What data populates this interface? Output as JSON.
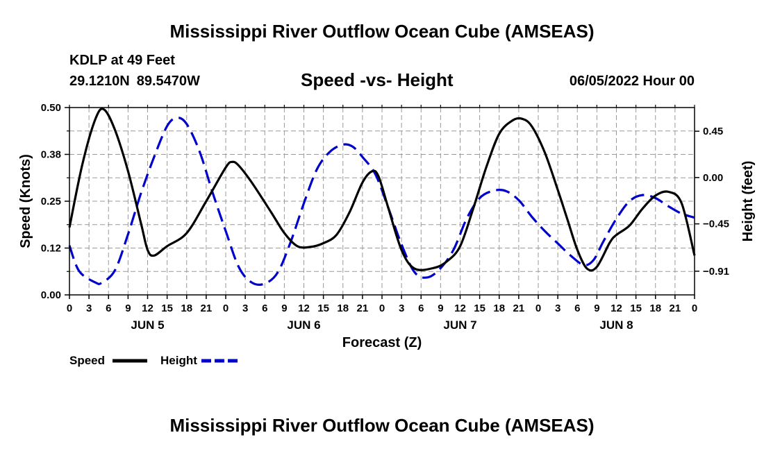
{
  "header": {
    "title": "Mississippi River Outflow Ocean Cube (AMSEAS)",
    "station": "KDLP at 49 Feet",
    "lat": "29.1210N",
    "lon": "89.5470W",
    "subtitle": "Speed -vs- Height",
    "datetime": "06/05/2022 Hour 00"
  },
  "footer_title": "Mississippi River Outflow Ocean Cube (AMSEAS)",
  "colors": {
    "speed": "#000000",
    "height": "#0000cc",
    "grid": "#999999"
  },
  "chart_data": {
    "type": "line",
    "title": "Speed -vs- Height",
    "xlabel": "Forecast (Z)",
    "ylabel": "Speed (Knots)",
    "y2label": "Height (feet)",
    "xlim": [
      0,
      96
    ],
    "ylim": [
      0,
      0.5
    ],
    "y2lim": [
      -1.14,
      0.68
    ],
    "x_tick_labels": [
      "0",
      "3",
      "6",
      "9",
      "12",
      "15",
      "18",
      "21",
      "0",
      "3",
      "6",
      "9",
      "12",
      "15",
      "18",
      "21",
      "0",
      "3",
      "6",
      "9",
      "12",
      "15",
      "18",
      "21",
      "0",
      "3",
      "6",
      "9",
      "12",
      "15",
      "18",
      "21",
      "0"
    ],
    "day_labels": [
      {
        "label": "JUN 5",
        "hour": 12
      },
      {
        "label": "JUN 6",
        "hour": 36
      },
      {
        "label": "JUN 7",
        "hour": 60
      },
      {
        "label": "JUN 8",
        "hour": 84
      }
    ],
    "y_ticks": [
      0,
      0.125,
      0.25,
      0.375,
      0.5
    ],
    "y_tick_labels": [
      "0.00",
      "0.12",
      "0.25",
      "0.38",
      "0.50"
    ],
    "y2_ticks": [
      0.45,
      0,
      -0.45,
      -0.91
    ],
    "y2_tick_labels": [
      "0.45",
      "0.00",
      "−0.45",
      "−0.91"
    ],
    "series": [
      {
        "name": "Speed",
        "axis": "left",
        "style": "solid",
        "points": [
          [
            0,
            0.18
          ],
          [
            2,
            0.35
          ],
          [
            4,
            0.47
          ],
          [
            5.3,
            0.495
          ],
          [
            7,
            0.44
          ],
          [
            9,
            0.33
          ],
          [
            11,
            0.19
          ],
          [
            12,
            0.12
          ],
          [
            13,
            0.105
          ],
          [
            15,
            0.13
          ],
          [
            18,
            0.165
          ],
          [
            21,
            0.25
          ],
          [
            24,
            0.34
          ],
          [
            25,
            0.355
          ],
          [
            26,
            0.345
          ],
          [
            28,
            0.3
          ],
          [
            31,
            0.22
          ],
          [
            33,
            0.165
          ],
          [
            35,
            0.13
          ],
          [
            37,
            0.128
          ],
          [
            39,
            0.138
          ],
          [
            41,
            0.16
          ],
          [
            43,
            0.22
          ],
          [
            45,
            0.3
          ],
          [
            46.5,
            0.33
          ],
          [
            47.5,
            0.315
          ],
          [
            49,
            0.23
          ],
          [
            51,
            0.12
          ],
          [
            53,
            0.07
          ],
          [
            56,
            0.072
          ],
          [
            58,
            0.09
          ],
          [
            60,
            0.13
          ],
          [
            62,
            0.23
          ],
          [
            64,
            0.34
          ],
          [
            66,
            0.43
          ],
          [
            68,
            0.465
          ],
          [
            69.5,
            0.47
          ],
          [
            71,
            0.45
          ],
          [
            73,
            0.38
          ],
          [
            75,
            0.28
          ],
          [
            76.5,
            0.2
          ],
          [
            78,
            0.12
          ],
          [
            79.5,
            0.07
          ],
          [
            81,
            0.075
          ],
          [
            83,
            0.14
          ],
          [
            84,
            0.16
          ],
          [
            86,
            0.185
          ],
          [
            88,
            0.23
          ],
          [
            90,
            0.265
          ],
          [
            92,
            0.275
          ],
          [
            94,
            0.245
          ],
          [
            96,
            0.105
          ]
        ]
      },
      {
        "name": "Height",
        "axis": "right",
        "style": "dashed",
        "points": [
          [
            0,
            -0.66
          ],
          [
            1.5,
            -0.91
          ],
          [
            4,
            -1.02
          ],
          [
            5,
            -1.02
          ],
          [
            7,
            -0.9
          ],
          [
            9,
            -0.55
          ],
          [
            11,
            -0.15
          ],
          [
            13,
            0.2
          ],
          [
            15,
            0.5
          ],
          [
            16.5,
            0.58
          ],
          [
            18,
            0.52
          ],
          [
            20,
            0.25
          ],
          [
            22,
            -0.15
          ],
          [
            24,
            -0.52
          ],
          [
            26,
            -0.87
          ],
          [
            28,
            -1.02
          ],
          [
            30,
            -1.03
          ],
          [
            32,
            -0.92
          ],
          [
            34,
            -0.62
          ],
          [
            36,
            -0.25
          ],
          [
            38,
            0.08
          ],
          [
            40,
            0.25
          ],
          [
            42,
            0.32
          ],
          [
            43.5,
            0.3
          ],
          [
            45,
            0.2
          ],
          [
            47,
            0.03
          ],
          [
            49,
            -0.3
          ],
          [
            51,
            -0.65
          ],
          [
            53,
            -0.92
          ],
          [
            55,
            -0.97
          ],
          [
            57,
            -0.88
          ],
          [
            59,
            -0.7
          ],
          [
            61,
            -0.4
          ],
          [
            63,
            -0.2
          ],
          [
            65,
            -0.13
          ],
          [
            67,
            -0.13
          ],
          [
            69,
            -0.22
          ],
          [
            71,
            -0.38
          ],
          [
            73,
            -0.52
          ],
          [
            75,
            -0.64
          ],
          [
            77,
            -0.76
          ],
          [
            79,
            -0.85
          ],
          [
            80.5,
            -0.8
          ],
          [
            82,
            -0.62
          ],
          [
            84,
            -0.4
          ],
          [
            86,
            -0.23
          ],
          [
            88,
            -0.17
          ],
          [
            90,
            -0.2
          ],
          [
            92,
            -0.28
          ],
          [
            94,
            -0.35
          ],
          [
            96,
            -0.39
          ]
        ]
      }
    ],
    "legend": {
      "placement": "bottom-left",
      "entries": [
        {
          "label": "Speed",
          "series": "Speed"
        },
        {
          "label": "Height",
          "series": "Height"
        }
      ]
    }
  }
}
